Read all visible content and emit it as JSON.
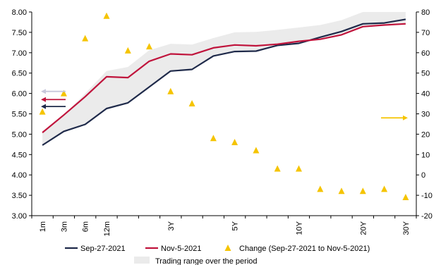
{
  "chart_data": {
    "type": "line",
    "categories": [
      "1m",
      "3m",
      "6m",
      "12m",
      "",
      "",
      "3Y",
      "",
      "",
      "5Y",
      "",
      "",
      "10Y",
      "",
      "",
      "20Y",
      "",
      "30Y"
    ],
    "left_axis": {
      "ylim": [
        3.0,
        8.0
      ],
      "ticks": [
        "3.00",
        "3.50",
        "4.00",
        "4.50",
        "5.00",
        "5.50",
        "6.00",
        "6.50",
        "7.00",
        "7.50",
        "8.00"
      ]
    },
    "right_axis": {
      "ylim": [
        -20,
        80
      ],
      "ticks": [
        "-20",
        "-10",
        "0",
        "10",
        "20",
        "30",
        "40",
        "50",
        "60",
        "70",
        "80"
      ]
    },
    "series": [
      {
        "name": "Sep-27-2021",
        "axis": "left",
        "color": "#1f2a4a",
        "values": [
          4.73,
          5.07,
          5.24,
          5.63,
          5.77,
          6.16,
          6.55,
          6.59,
          6.92,
          7.03,
          7.04,
          7.18,
          7.23,
          7.38,
          7.52,
          7.71,
          7.73,
          7.82
        ]
      },
      {
        "name": "Nov-5-2021",
        "axis": "left",
        "color": "#c0143c",
        "values": [
          5.04,
          5.47,
          5.92,
          6.41,
          6.39,
          6.79,
          6.97,
          6.95,
          7.12,
          7.19,
          7.17,
          7.21,
          7.28,
          7.33,
          7.44,
          7.64,
          7.68,
          7.71
        ]
      },
      {
        "name": "Change (Sep-27-2021 to Nov-5-2021)",
        "axis": "right",
        "type": "scatter",
        "color": "#f5c400",
        "values": [
          31,
          40,
          67,
          78,
          61,
          63,
          41,
          35,
          18,
          16,
          12,
          3,
          3,
          -7,
          -8,
          -8,
          -7,
          -11
        ]
      }
    ],
    "band": {
      "name": "Trading range over the period",
      "axis": "left",
      "color": "#ebebeb",
      "lower": [
        4.73,
        5.07,
        5.24,
        5.63,
        5.77,
        6.16,
        6.55,
        6.59,
        6.92,
        7.03,
        7.04,
        7.18,
        7.23,
        7.33,
        7.44,
        7.64,
        7.68,
        7.71
      ],
      "upper": [
        5.04,
        5.47,
        6.0,
        6.55,
        6.65,
        7.06,
        7.22,
        7.2,
        7.36,
        7.5,
        7.51,
        7.56,
        7.62,
        7.68,
        7.8,
        8.0,
        8.0,
        8.0
      ]
    },
    "annotations": [
      {
        "type": "arrow",
        "direction": "left",
        "color": "#c8c8dc",
        "y_left": 6.05
      },
      {
        "type": "arrow",
        "direction": "left",
        "color": "#c0143c",
        "y_left": 5.85
      },
      {
        "type": "arrow",
        "direction": "left",
        "color": "#1f2a4a",
        "y_left": 5.68
      },
      {
        "type": "arrow",
        "direction": "right",
        "color": "#f5c400",
        "y_right": 28
      }
    ],
    "grid": false,
    "legend_position": "bottom"
  }
}
